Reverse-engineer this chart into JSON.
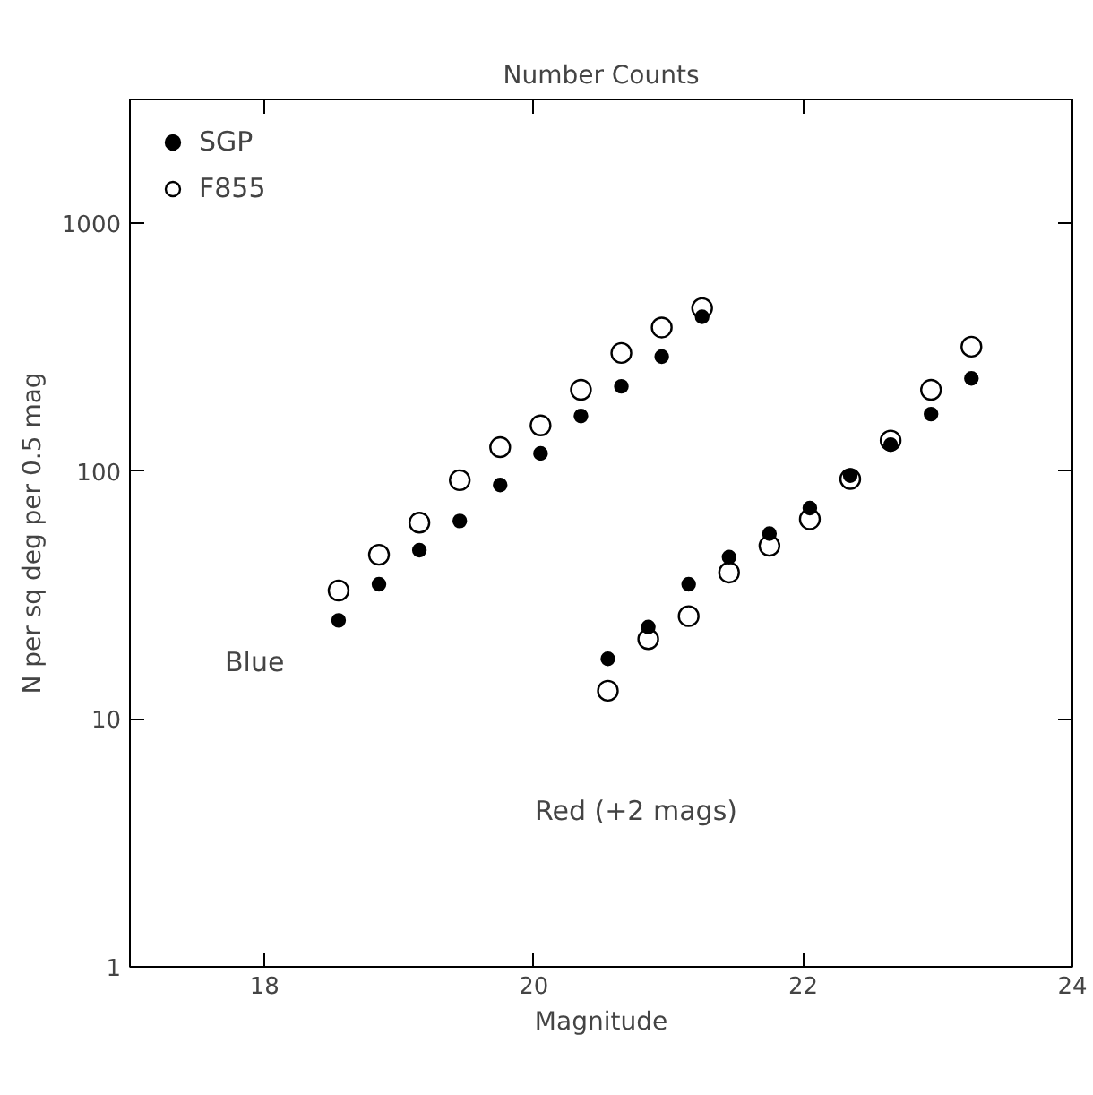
{
  "chart_data": {
    "type": "scatter",
    "title": "Number Counts",
    "xlabel": "Magnitude",
    "ylabel": "N per sq deg per 0.5 mag",
    "xlim": [
      17,
      24
    ],
    "xticks": [
      18,
      20,
      22,
      24
    ],
    "ylim": [
      1,
      3162
    ],
    "yticks": [
      1,
      10,
      100,
      1000
    ],
    "log": "y",
    "grid": false,
    "legend": "top left",
    "marker": "circle",
    "series": [
      {
        "name": "SGP",
        "color": "#000000",
        "x": [
          18.55,
          18.85,
          19.15,
          19.45,
          19.75,
          20.05,
          20.35,
          20.65,
          20.95,
          21.25,
          20.55,
          20.85,
          21.15,
          21.45,
          21.75,
          22.05,
          22.35,
          22.65,
          22.95,
          23.25
        ],
        "values": [
          25,
          35,
          48,
          63,
          88,
          118,
          167,
          220,
          290,
          420,
          17.5,
          23.5,
          35,
          45,
          56,
          71,
          96,
          128,
          170,
          237
        ]
      },
      {
        "name": "F855",
        "color": "#000000",
        "x": [
          18.55,
          18.85,
          19.15,
          19.45,
          19.75,
          20.05,
          20.35,
          20.65,
          20.95,
          21.25,
          20.55,
          20.85,
          21.15,
          21.45,
          21.75,
          22.05,
          22.35,
          22.65,
          22.95,
          23.25
        ],
        "values": [
          33,
          46,
          62,
          92,
          125,
          153,
          213,
          300,
          380,
          455,
          13,
          21,
          26,
          39,
          50,
          64,
          93,
          133,
          213,
          318
        ]
      }
    ],
    "annotations": [
      "Blue",
      "Red (+2 mags)"
    ]
  }
}
